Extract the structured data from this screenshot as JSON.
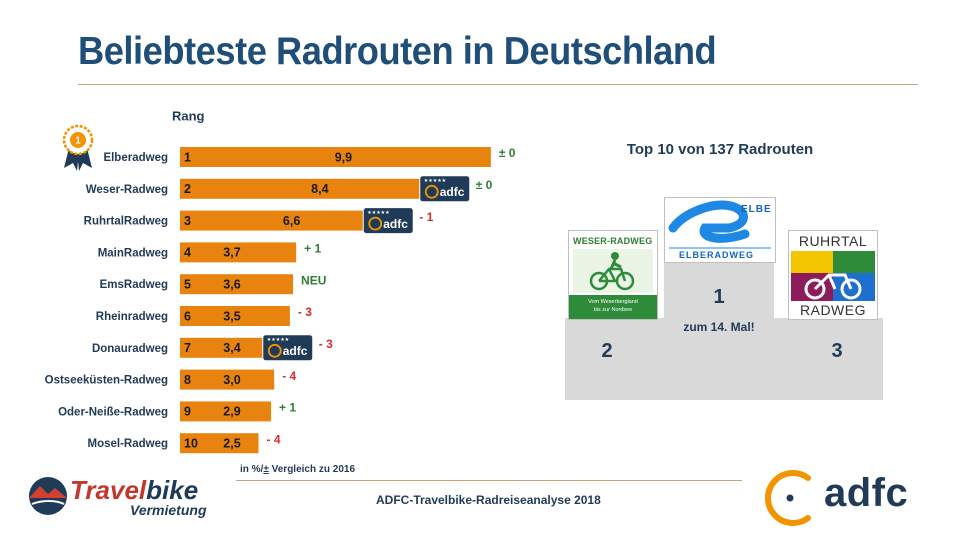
{
  "title": "Beliebteste Radrouten in Deutschland",
  "rank_label": "Rang",
  "colors": {
    "bar": "#e9830f",
    "title": "#1f4e79",
    "text_dark": "#1f3b57",
    "positive": "#2e7d32",
    "negative": "#d32f2f",
    "podium": "#d9d9d9",
    "adfc_orange": "#f29400"
  },
  "chart_data": {
    "type": "bar",
    "orientation": "horizontal",
    "categories": [
      "Elberadweg",
      "Weser-Radweg",
      "RuhrtalRadweg",
      "MainRadweg",
      "EmsRadweg",
      "Rheinradweg",
      "Donauradweg",
      "Ostseeküsten-Radweg",
      "Oder-Neiße-Radweg",
      "Mosel-Radweg"
    ],
    "ranks": [
      "1",
      "2",
      "3",
      "4",
      "5",
      "6",
      "7",
      "8",
      "9",
      "10"
    ],
    "values": [
      9.9,
      8.4,
      6.6,
      3.7,
      3.6,
      3.5,
      3.4,
      3.0,
      2.9,
      2.5
    ],
    "value_labels": [
      "9,9",
      "8,4",
      "6,6",
      "3,7",
      "3,6",
      "3,5",
      "3,4",
      "3,0",
      "2,9",
      "2,5"
    ],
    "changes": [
      {
        "text": "± 0",
        "trend": "neutral"
      },
      {
        "text": "± 0",
        "trend": "neutral"
      },
      {
        "text": "- 1",
        "trend": "negative"
      },
      {
        "text": "+ 1",
        "trend": "positive"
      },
      {
        "text": "NEU",
        "trend": "positive"
      },
      {
        "text": "- 3",
        "trend": "negative"
      },
      {
        "text": "- 3",
        "trend": "negative"
      },
      {
        "text": "- 4",
        "trend": "negative"
      },
      {
        "text": "+ 1",
        "trend": "positive"
      },
      {
        "text": "- 4",
        "trend": "negative"
      }
    ],
    "adfc_badges": [
      false,
      true,
      true,
      false,
      false,
      false,
      true,
      false,
      false,
      false
    ],
    "badge_text": "adfc",
    "badge_stars": "★★★★★",
    "xlim": [
      0,
      10
    ],
    "unit_note": "in %/± Vergleich zu 2016",
    "xlabel": "",
    "ylabel": ""
  },
  "award_badge_text": "1",
  "podium": {
    "heading": "Top 10 von 137 Radrouten",
    "first": "1",
    "second": "2",
    "third": "3",
    "note": "zum 14. Mal!",
    "logos": {
      "weser": {
        "title": "WESER-RADWEG",
        "footer_line1": "Vom Weserbergland",
        "footer_line2": "bis zur Nordsee"
      },
      "elbe": {
        "tag": "ELBE",
        "name": "ELBERADWEG"
      },
      "ruhr": {
        "top": "RUHRTAL",
        "bottom": "RADWEG"
      }
    }
  },
  "footnote_prefix": "in %/",
  "footnote_underlined": "±",
  "footnote_suffix": " Vergleich zu 2016",
  "source": "ADFC-Travelbike-Radreiseanalyse 2018",
  "travelbike": {
    "brand_a": "Travel",
    "brand_b": "bike",
    "sub": "Vermietung"
  },
  "adfc_logo_text": "adfc"
}
